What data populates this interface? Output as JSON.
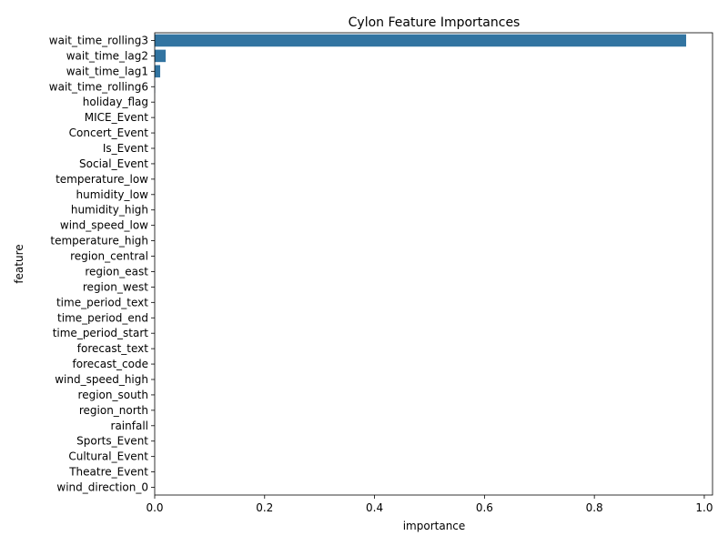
{
  "chart_data": {
    "type": "bar",
    "orientation": "horizontal",
    "title": "Cylon Feature Importances",
    "xlabel": "importance",
    "ylabel": "feature",
    "xlim": [
      0,
      1.015
    ],
    "x_ticks": [
      "0.0",
      "0.2",
      "0.4",
      "0.6",
      "0.8",
      "1.0"
    ],
    "bar_color": "#3274a1",
    "grid": false,
    "categories": [
      "wait_time_rolling3",
      "wait_time_lag2",
      "wait_time_lag1",
      "wait_time_rolling6",
      "holiday_flag",
      "MICE_Event",
      "Concert_Event",
      "Is_Event",
      "Social_Event",
      "temperature_low",
      "humidity_low",
      "humidity_high",
      "wind_speed_low",
      "temperature_high",
      "region_central",
      "region_east",
      "region_west",
      "time_period_text",
      "time_period_end",
      "time_period_start",
      "forecast_text",
      "forecast_code",
      "wind_speed_high",
      "region_south",
      "region_north",
      "rainfall",
      "Sports_Event",
      "Cultural_Event",
      "Theatre_Event",
      "wind_direction_0"
    ],
    "values": [
      0.967,
      0.02,
      0.01,
      0.0005,
      0,
      0,
      0,
      0,
      0,
      0,
      0,
      0,
      0,
      0,
      0,
      0,
      0,
      0,
      0,
      0,
      0,
      0,
      0,
      0,
      0,
      0,
      0,
      0,
      0,
      0
    ]
  }
}
